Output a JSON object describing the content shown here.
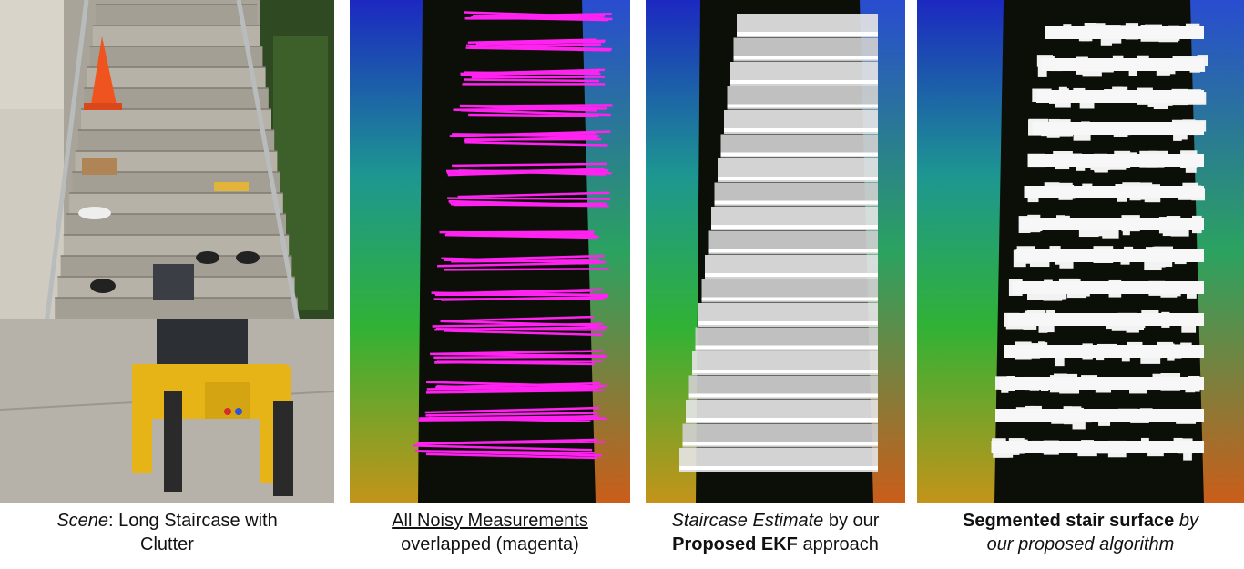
{
  "figure": {
    "panels": [
      {
        "id": "scene",
        "image": "Photo of a yellow quadruped robot at the foot of a long concrete outdoor staircase with metal handrails; clutter (orange traffic cone, cardboard box, small tires, white cloth, yellow blocks) placed on the steps",
        "caption": {
          "line1_em": "Scene",
          "line1_rest": ": Long Staircase with",
          "line2": "Clutter"
        }
      },
      {
        "id": "noisy",
        "image": "Top-down LiDAR point cloud of the staircase colored by height (blue/green to orange), with many jittered magenta horizontal line segments overlaid on the steps",
        "caption": {
          "line1_u": "All Noisy Measurements",
          "line2": "overlapped (magenta)"
        }
      },
      {
        "id": "ekf",
        "image": "Same LiDAR point cloud with a clean rendered grey/white staircase model overlaid, one uniform step per stair",
        "caption": {
          "line1_em": "Staircase Estimate",
          "line1_rest": " by our",
          "line2_b": "Proposed EKF",
          "line2_rest": " approach"
        }
      },
      {
        "id": "segmented",
        "image": "Same LiDAR point cloud with white blocky segmented patches covering each stair tread",
        "caption": {
          "line1_b": "Segmented stair surface",
          "line1_bi": " by",
          "line2_bi": "our proposed algorithm"
        }
      }
    ]
  }
}
